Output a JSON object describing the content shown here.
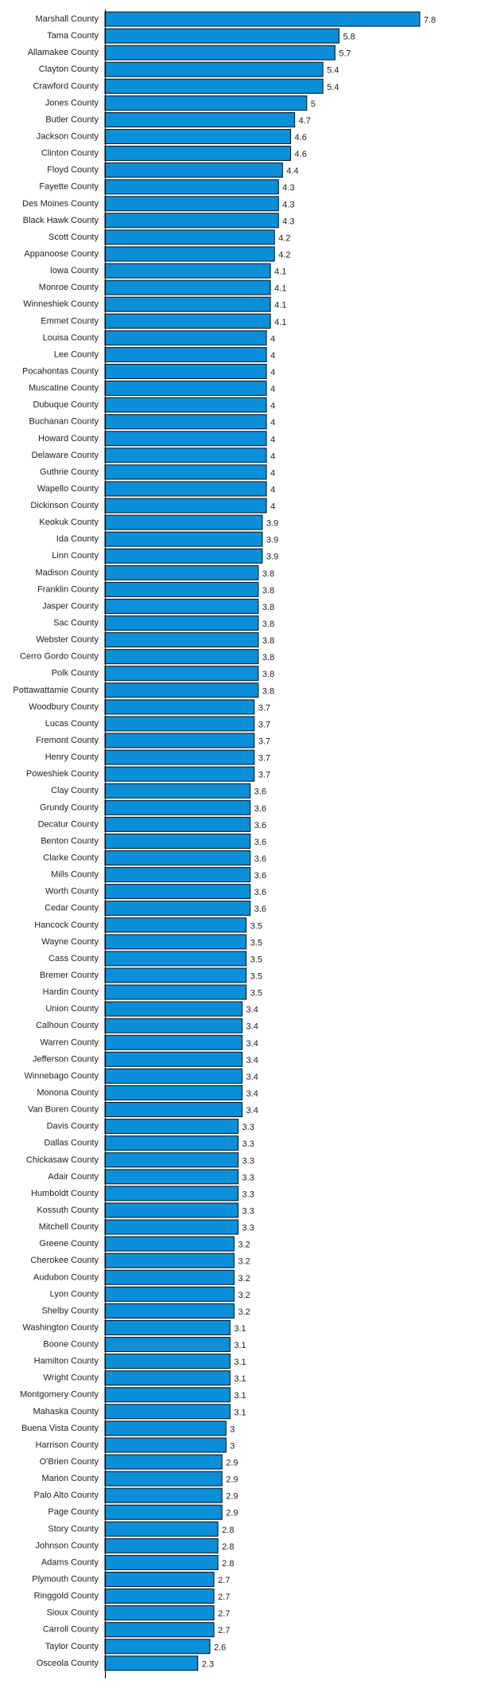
{
  "chart_data": {
    "type": "bar",
    "orientation": "horizontal",
    "bar_color": "#0a8fd8",
    "title": "",
    "xlabel": "",
    "ylabel": "",
    "xlim": [
      0,
      7.8
    ],
    "grid": false,
    "categories": [
      "Marshall County",
      "Tama County",
      "Allamakee County",
      "Clayton County",
      "Crawford County",
      "Jones County",
      "Butler County",
      "Jackson County",
      "Clinton County",
      "Floyd County",
      "Fayette County",
      "Des Moines County",
      "Black Hawk County",
      "Scott County",
      "Appanoose County",
      "Iowa County",
      "Monroe County",
      "Winneshiek County",
      "Emmet County",
      "Louisa County",
      "Lee County",
      "Pocahontas County",
      "Muscatine County",
      "Dubuque County",
      "Buchanan County",
      "Howard County",
      "Delaware County",
      "Guthrie County",
      "Wapello County",
      "Dickinson County",
      "Keokuk County",
      "Ida County",
      "Linn County",
      "Madison County",
      "Franklin County",
      "Jasper County",
      "Sac County",
      "Webster County",
      "Cerro Gordo County",
      "Polk County",
      "Pottawattamie County",
      "Woodbury County",
      "Lucas County",
      "Fremont County",
      "Henry County",
      "Poweshiek County",
      "Clay County",
      "Grundy County",
      "Decatur County",
      "Benton County",
      "Clarke County",
      "Mills County",
      "Worth County",
      "Cedar County",
      "Hancock County",
      "Wayne County",
      "Cass County",
      "Bremer County",
      "Hardin County",
      "Union County",
      "Calhoun County",
      "Warren County",
      "Jefferson County",
      "Winnebago County",
      "Monona County",
      "Van Buren County",
      "Davis County",
      "Dallas County",
      "Chickasaw County",
      "Adair County",
      "Humboldt County",
      "Kossuth County",
      "Mitchell County",
      "Greene County",
      "Cherokee County",
      "Audubon County",
      "Lyon County",
      "Shelby County",
      "Washington County",
      "Boone County",
      "Hamilton County",
      "Wright County",
      "Montgomery County",
      "Mahaska County",
      "Buena Vista County",
      "Harrison County",
      "O'Brien County",
      "Marion County",
      "Palo Alto County",
      "Page County",
      "Story County",
      "Johnson County",
      "Adams County",
      "Plymouth County",
      "Ringgold County",
      "Sioux County",
      "Carroll County",
      "Taylor County",
      "Osceola County"
    ],
    "values": [
      7.8,
      5.8,
      5.7,
      5.4,
      5.4,
      5,
      4.7,
      4.6,
      4.6,
      4.4,
      4.3,
      4.3,
      4.3,
      4.2,
      4.2,
      4.1,
      4.1,
      4.1,
      4.1,
      4,
      4,
      4,
      4,
      4,
      4,
      4,
      4,
      4,
      4,
      4,
      3.9,
      3.9,
      3.9,
      3.8,
      3.8,
      3.8,
      3.8,
      3.8,
      3.8,
      3.8,
      3.8,
      3.7,
      3.7,
      3.7,
      3.7,
      3.7,
      3.6,
      3.6,
      3.6,
      3.6,
      3.6,
      3.6,
      3.6,
      3.6,
      3.5,
      3.5,
      3.5,
      3.5,
      3.5,
      3.4,
      3.4,
      3.4,
      3.4,
      3.4,
      3.4,
      3.4,
      3.3,
      3.3,
      3.3,
      3.3,
      3.3,
      3.3,
      3.3,
      3.2,
      3.2,
      3.2,
      3.2,
      3.2,
      3.1,
      3.1,
      3.1,
      3.1,
      3.1,
      3.1,
      3,
      3,
      2.9,
      2.9,
      2.9,
      2.9,
      2.8,
      2.8,
      2.8,
      2.7,
      2.7,
      2.7,
      2.7,
      2.6,
      2.3
    ]
  }
}
